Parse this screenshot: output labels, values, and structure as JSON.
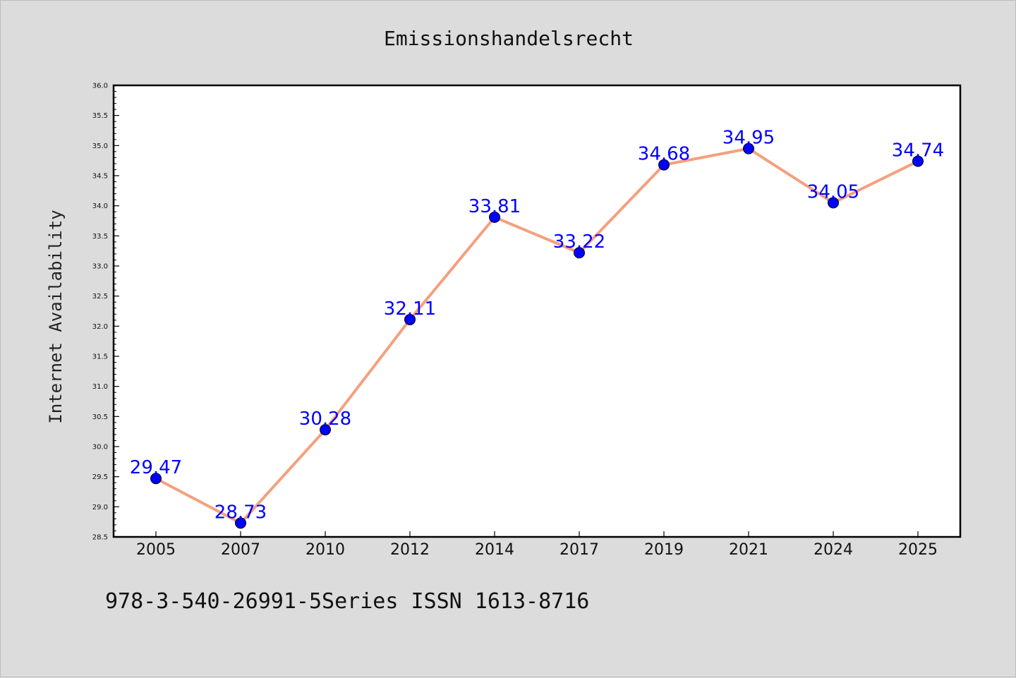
{
  "chart_data": {
    "type": "line",
    "title": "Emissionshandelsrecht",
    "xlabel": "",
    "ylabel": "Internet Availability",
    "categories": [
      "2005",
      "2007",
      "2010",
      "2012",
      "2014",
      "2017",
      "2019",
      "2021",
      "2024",
      "2025"
    ],
    "series": [
      {
        "values": [
          29.47,
          28.73,
          30.28,
          32.11,
          33.81,
          33.22,
          34.68,
          34.95,
          34.05,
          34.74
        ],
        "labels": [
          "29.47",
          "28.73",
          "30.28",
          "32.11",
          "33.81",
          "33.22",
          "34.68",
          "34.95",
          "34.05",
          "34.74"
        ]
      }
    ],
    "ylim": [
      28.5,
      36.0
    ],
    "yticks": [
      "28.5",
      "29.0",
      "29.5",
      "30.0",
      "30.5",
      "31.0",
      "31.5",
      "32.0",
      "32.5",
      "33.0",
      "33.5",
      "34.0",
      "34.5",
      "35.0",
      "35.5",
      "36.0"
    ],
    "grid": false,
    "colors": {
      "line": "#f4a07f",
      "marker": "#0000ff",
      "label": "#0000ff",
      "background": "#dcdcdc",
      "plot_bg": "#ffffff"
    }
  },
  "footer": {
    "caption": "978-3-540-26991-5Series ISSN 1613-8716"
  }
}
